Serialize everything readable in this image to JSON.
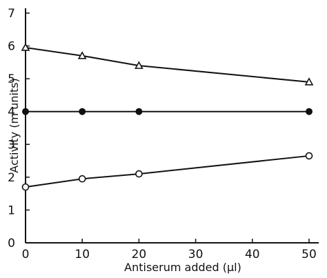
{
  "chart_data": {
    "type": "line",
    "title": "",
    "xlabel": "Antiserum added (µl)",
    "ylabel": "Activity (m units)",
    "xlim": [
      0,
      50
    ],
    "ylim": [
      0,
      7
    ],
    "x_ticks": [
      "0",
      "10",
      "20",
      "30",
      "40",
      "50"
    ],
    "y_ticks": [
      "0",
      "1",
      "2",
      "3",
      "4",
      "5",
      "6",
      "7"
    ],
    "grid": false,
    "series": [
      {
        "marker": "triangle-open",
        "x": [
          0,
          10,
          20,
          50
        ],
        "values": [
          5.95,
          5.7,
          5.4,
          4.9
        ]
      },
      {
        "marker": "circle-filled",
        "x": [
          0,
          10,
          20,
          50
        ],
        "values": [
          4.0,
          4.0,
          4.0,
          4.0
        ]
      },
      {
        "marker": "circle-open",
        "x": [
          0,
          10,
          20,
          50
        ],
        "values": [
          1.7,
          1.95,
          2.1,
          2.65
        ]
      }
    ],
    "colors": {
      "ink": "#111111"
    }
  }
}
